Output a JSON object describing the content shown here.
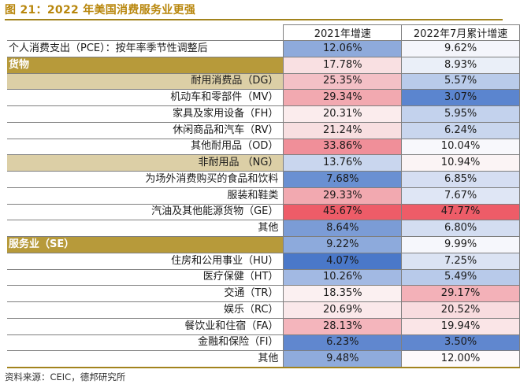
{
  "title": "图 21：2022 年美国消费服务业更强",
  "source": "资料来源：CEIC，德邦研究所",
  "columns": [
    "2021年增速",
    "2022年7月累计增速"
  ],
  "rows": [
    {
      "label": "个人消费支出（PCE）：按年率季节性调整后",
      "kind": "top",
      "v2021": "12.06%",
      "v2022": "9.62%",
      "c2021": "#8eaadb",
      "c2022": "#f4f5fb"
    },
    {
      "label": "货物",
      "kind": "grp",
      "v2021": "17.78%",
      "v2022": "8.93%",
      "c2021": "#f9e0e2",
      "c2022": "#eaeff8"
    },
    {
      "label": "耐用消费品（DG）",
      "kind": "sub",
      "v2021": "25.35%",
      "v2022": "5.57%",
      "c2021": "#f4c0c6",
      "c2022": "#b9cbea"
    },
    {
      "label": "机动车和零部件（MV）",
      "kind": "item",
      "v2021": "29.34%",
      "v2022": "3.07%",
      "c2021": "#f2a9b0",
      "c2022": "#5b85cf"
    },
    {
      "label": "家具及家用设备（FH）",
      "kind": "item",
      "v2021": "20.31%",
      "v2022": "5.95%",
      "c2021": "#fbeced",
      "c2022": "#c3d2ed"
    },
    {
      "label": "休闲商品和汽车（RV）",
      "kind": "item",
      "v2021": "21.24%",
      "v2022": "6.24%",
      "c2021": "#f8dfe1",
      "c2022": "#c9d6ee"
    },
    {
      "label": "其他耐用品（OD）",
      "kind": "item",
      "v2021": "33.86%",
      "v2022": "10.04%",
      "c2021": "#f08f99",
      "c2022": "#f8f8fc"
    },
    {
      "label": "非耐用品  （NG）",
      "kind": "sub",
      "v2021": "13.76%",
      "v2022": "10.94%",
      "c2021": "#c9d6ee",
      "c2022": "#fbf4f5"
    },
    {
      "label": "为场外消费购买的食品和饮料",
      "kind": "item",
      "v2021": "7.68%",
      "v2022": "6.85%",
      "c2021": "#6a90d2",
      "c2022": "#d5def2"
    },
    {
      "label": "服装和鞋类",
      "kind": "item",
      "v2021": "29.33%",
      "v2022": "7.67%",
      "c2021": "#f2a9b0",
      "c2022": "#dfe6f5"
    },
    {
      "label": "汽油及其他能源货物（GE）",
      "kind": "item",
      "v2021": "45.67%",
      "v2022": "47.77%",
      "c2021": "#ee5c68",
      "c2022": "#ee5c68"
    },
    {
      "label": "其他",
      "kind": "item",
      "v2021": "8.64%",
      "v2022": "6.80%",
      "c2021": "#7b9cd6",
      "c2022": "#d3ddf1"
    },
    {
      "label": "服务业（SE）",
      "kind": "grp",
      "v2021": "9.22%",
      "v2022": "9.99%",
      "c2021": "#8daadc",
      "c2022": "#f6f7fc"
    },
    {
      "label": "住房和公用事业（HU）",
      "kind": "item",
      "v2021": "4.07%",
      "v2022": "7.25%",
      "c2021": "#4a78c9",
      "c2022": "#dbe3f3"
    },
    {
      "label": "医疗保健（HT）",
      "kind": "item",
      "v2021": "10.26%",
      "v2022": "5.49%",
      "c2021": "#a2b9e3",
      "c2022": "#b8caea"
    },
    {
      "label": "交通（TR）",
      "kind": "item",
      "v2021": "18.35%",
      "v2022": "29.17%",
      "c2021": "#fbf0f1",
      "c2022": "#f3b1b8"
    },
    {
      "label": "娱乐（RC）",
      "kind": "item",
      "v2021": "20.69%",
      "v2022": "20.52%",
      "c2021": "#fae8ea",
      "c2022": "#f8dcdf"
    },
    {
      "label": "餐饮业和住宿（FA）",
      "kind": "item",
      "v2021": "28.13%",
      "v2022": "19.94%",
      "c2021": "#f4b5bc",
      "c2022": "#fae5e7"
    },
    {
      "label": "金融和保险（FI）",
      "kind": "item",
      "v2021": "6.23%",
      "v2022": "3.50%",
      "c2021": "#6087cf",
      "c2022": "#6087cf"
    },
    {
      "label": "其他",
      "kind": "item",
      "v2021": "9.48%",
      "v2022": "12.00%",
      "c2021": "#8fabdc",
      "c2022": "#fdfafb"
    }
  ]
}
